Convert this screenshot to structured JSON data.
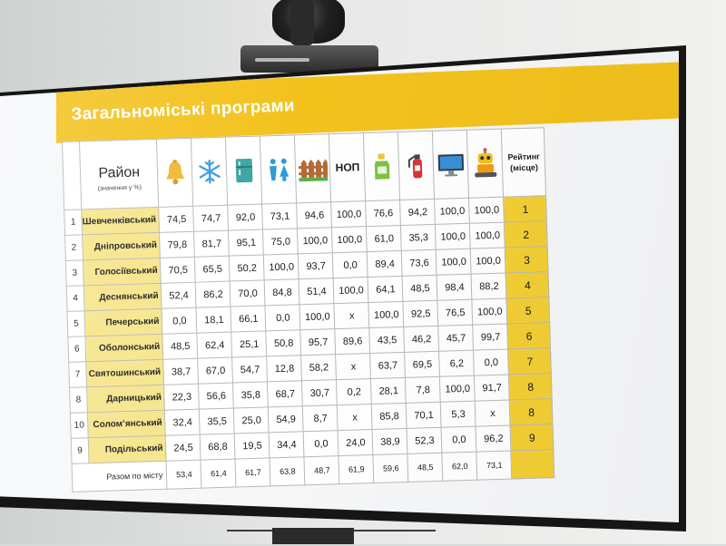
{
  "slide": {
    "title": "Загальноміські програми"
  },
  "table": {
    "district_header": "Район",
    "district_subheader": "(значення у %)",
    "nop_header": "НОП",
    "rating_header_line1": "Рейтинг",
    "rating_header_line2": "(місце)",
    "column_icons": [
      "bell-icon",
      "snowflake-icon",
      "refrigerator-icon",
      "restroom-icon",
      "fence-icon",
      "nop-label",
      "bottle-icon",
      "fire-extinguisher-icon",
      "monitor-icon",
      "robot-icon"
    ],
    "rows": [
      {
        "num": "1",
        "district": "Шевченківський",
        "values": [
          "74,5",
          "74,7",
          "92,0",
          "73,1",
          "94,6",
          "100,0",
          "76,6",
          "94,2",
          "100,0",
          "100,0"
        ],
        "rating": "1"
      },
      {
        "num": "2",
        "district": "Дніпровський",
        "values": [
          "79,8",
          "81,7",
          "95,1",
          "75,0",
          "100,0",
          "100,0",
          "61,0",
          "35,3",
          "100,0",
          "100,0"
        ],
        "rating": "2"
      },
      {
        "num": "3",
        "district": "Голосіївський",
        "values": [
          "70,5",
          "65,5",
          "50,2",
          "100,0",
          "93,7",
          "0,0",
          "89,4",
          "73,6",
          "100,0",
          "100,0"
        ],
        "rating": "3"
      },
      {
        "num": "4",
        "district": "Деснянський",
        "values": [
          "52,4",
          "86,2",
          "70,0",
          "84,8",
          "51,4",
          "100,0",
          "64,1",
          "48,5",
          "98,4",
          "88,2"
        ],
        "rating": "4"
      },
      {
        "num": "5",
        "district": "Печерський",
        "values": [
          "0,0",
          "18,1",
          "66,1",
          "0,0",
          "100,0",
          "x",
          "100,0",
          "92,5",
          "76,5",
          "100,0"
        ],
        "rating": "5"
      },
      {
        "num": "6",
        "district": "Оболонський",
        "values": [
          "48,5",
          "62,4",
          "25,1",
          "50,8",
          "95,7",
          "89,6",
          "43,5",
          "46,2",
          "45,7",
          "99,7"
        ],
        "rating": "6"
      },
      {
        "num": "7",
        "district": "Святошинський",
        "values": [
          "38,7",
          "67,0",
          "54,7",
          "12,8",
          "58,2",
          "x",
          "63,7",
          "69,5",
          "6,2",
          "0,0"
        ],
        "rating": "7"
      },
      {
        "num": "8",
        "district": "Дарницький",
        "values": [
          "22,3",
          "56,6",
          "35,8",
          "68,7",
          "30,7",
          "0,2",
          "28,1",
          "7,8",
          "100,0",
          "91,7"
        ],
        "rating": "8"
      },
      {
        "num": "10",
        "district": "Солом’янський",
        "values": [
          "32,4",
          "35,5",
          "25,0",
          "54,9",
          "8,7",
          "x",
          "85,8",
          "70,1",
          "5,3",
          "x"
        ],
        "rating": "8"
      },
      {
        "num": "9",
        "district": "Подільський",
        "values": [
          "24,5",
          "68,8",
          "19,5",
          "34,4",
          "0,0",
          "24,0",
          "38,9",
          "52,3",
          "0,0",
          "96,2"
        ],
        "rating": "9"
      }
    ],
    "total_label": "Разом по місту",
    "total_values": [
      "53,4",
      "61,4",
      "61,7",
      "63,8",
      "48,7",
      "61,9",
      "59,6",
      "48,5",
      "62,0",
      "73,1"
    ]
  },
  "colors": {
    "banner": "#f3c21d",
    "district_fill": "#f6e58a",
    "rating_fill": "#f3cf34"
  }
}
